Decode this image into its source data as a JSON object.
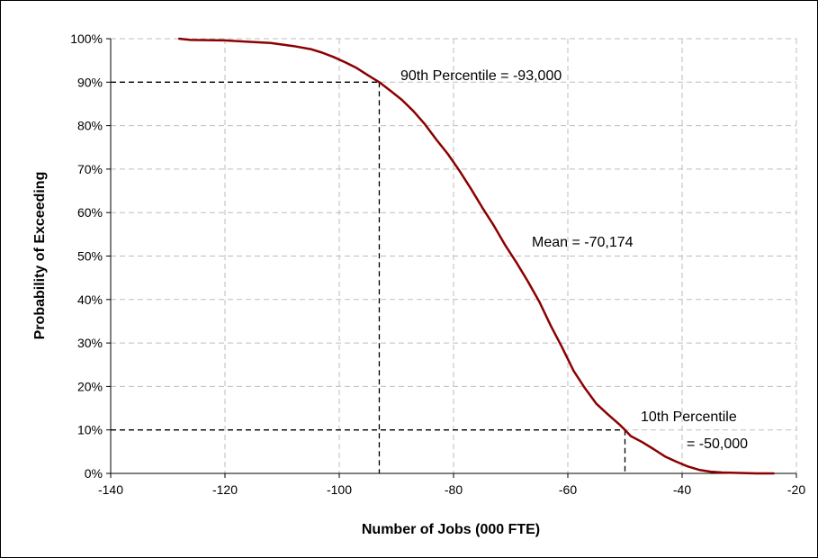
{
  "chart_data": {
    "type": "line",
    "title": "",
    "xlabel": "Number of Jobs (000 FTE)",
    "ylabel": "Probability of Exceeding",
    "xlim": [
      -140,
      -20
    ],
    "ylim": [
      0,
      100
    ],
    "x_ticks": [
      "-140",
      "-120",
      "-100",
      "-80",
      "-60",
      "-40",
      "-20"
    ],
    "y_ticks": [
      "0%",
      "10%",
      "20%",
      "30%",
      "40%",
      "50%",
      "60%",
      "70%",
      "80%",
      "90%",
      "100%"
    ],
    "grid": true,
    "legend": "none",
    "line_color": "#8b0000",
    "series": [
      {
        "x": [
          -128,
          -126,
          -120,
          -116,
          -112,
          -108,
          -105,
          -103,
          -101,
          -99,
          -97,
          -95,
          -93,
          -91,
          -89,
          -87,
          -85,
          -83,
          -81,
          -79,
          -77,
          -75,
          -73,
          -71,
          -69,
          -67,
          -65,
          -63,
          -61,
          -59,
          -57,
          -55,
          -53,
          -51,
          -50,
          -49,
          -47,
          -45,
          -43,
          -41,
          -39,
          -37,
          -35,
          -33,
          -30,
          -27,
          -24
        ],
        "y": [
          100,
          99.7,
          99.6,
          99.3,
          99.0,
          98.3,
          97.6,
          96.8,
          95.8,
          94.6,
          93.3,
          91.6,
          90.0,
          88.0,
          85.9,
          83.3,
          80.3,
          76.8,
          73.5,
          69.7,
          65.6,
          61.2,
          57.1,
          52.6,
          48.5,
          44.2,
          39.5,
          34.0,
          29.0,
          23.6,
          19.6,
          16.0,
          13.6,
          11.3,
          10.0,
          8.6,
          7.2,
          5.6,
          3.9,
          2.7,
          1.6,
          0.8,
          0.4,
          0.2,
          0.1,
          0.0,
          0.0
        ]
      }
    ],
    "reference_lines": [
      {
        "x": -93,
        "y": 90
      },
      {
        "x": -50,
        "y": 10
      }
    ],
    "annotations": {
      "p90": "90th Percentile = -93,000",
      "mean": "Mean = -70,174",
      "p10_line1": "10th Percentile",
      "p10_line2": "= -50,000"
    }
  }
}
